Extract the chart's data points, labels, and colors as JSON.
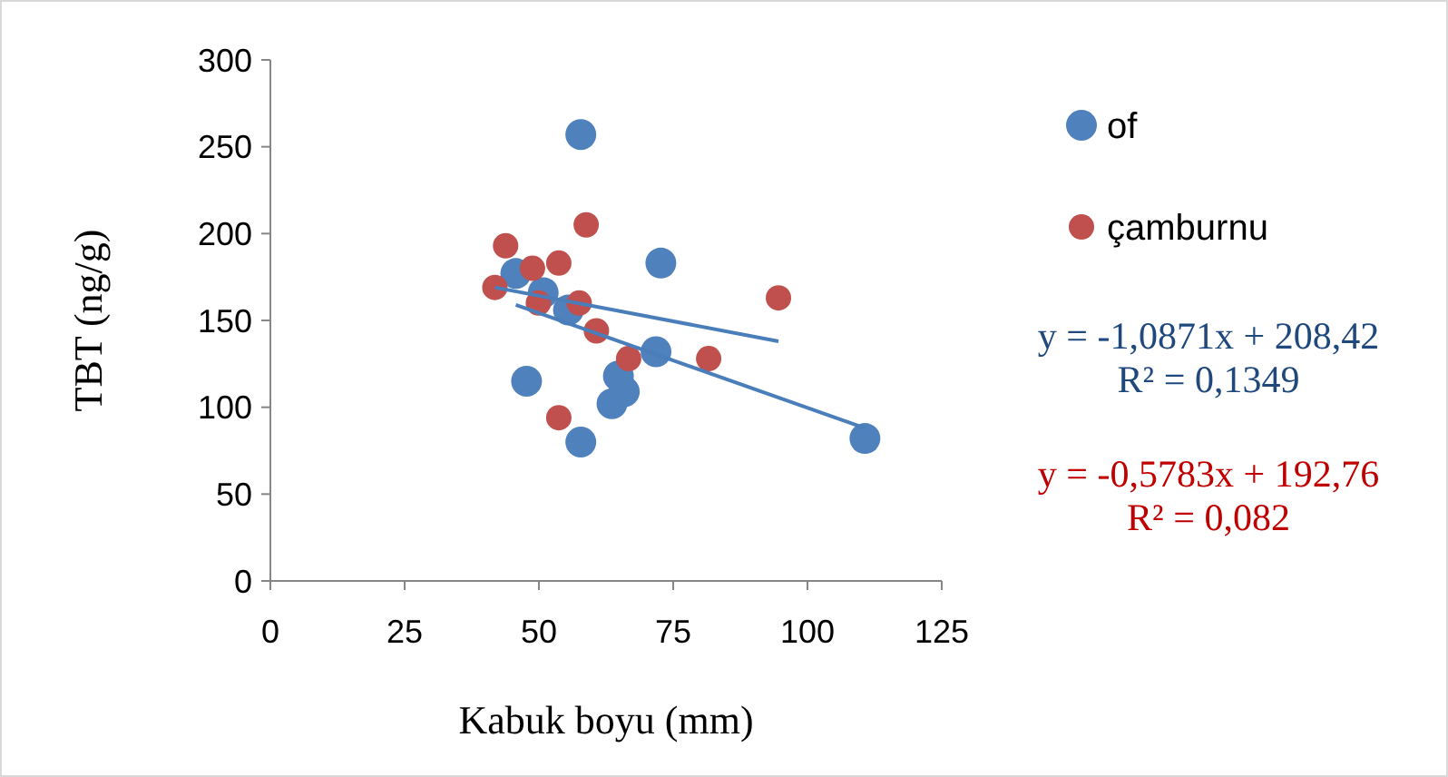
{
  "chart_data": {
    "type": "scatter",
    "xlabel": "Kabuk boyu (mm)",
    "ylabel": "TBT (ng/g)",
    "xlim": [
      0,
      125
    ],
    "xticks": [
      0,
      25,
      50,
      75,
      100,
      125
    ],
    "ylim": [
      0,
      300
    ],
    "yticks": [
      0,
      50,
      100,
      150,
      200,
      250,
      300
    ],
    "grid": false,
    "legend": "right",
    "marker": "circle",
    "series": [
      {
        "name": "of",
        "color": "#4f81bd",
        "x": [
          57.8,
          72.7,
          45.7,
          50.8,
          55.5,
          71.8,
          64.8,
          65.9,
          63.6,
          47.7,
          57.8,
          110.7
        ],
        "values": [
          257,
          183,
          177,
          166,
          156,
          132,
          118,
          109,
          102,
          115,
          80,
          82
        ]
      },
      {
        "name": "çamburnu",
        "color": "#c0504d",
        "x": [
          58.8,
          43.8,
          53.7,
          48.8,
          41.8,
          49.9,
          57.5,
          60.7,
          94.6,
          66.7,
          81.6,
          53.7
        ],
        "values": [
          205,
          193,
          183,
          180,
          169,
          160,
          160,
          144,
          163,
          128,
          128,
          94
        ]
      },
      {
        "type": "line",
        "marker": "none",
        "color": "#4a7ebb",
        "x": [
          45.7,
          110.7
        ],
        "values": [
          159,
          88
        ]
      },
      {
        "type": "line",
        "marker": "none",
        "color": "#4a7ebb",
        "x": [
          41.8,
          94.6
        ],
        "values": [
          169,
          138
        ]
      }
    ],
    "annotations": [
      "y = -1,0871x + 208,42\nR² = 0,1349",
      "y = -0,5783x + 192,76\nR² = 0,082"
    ]
  }
}
